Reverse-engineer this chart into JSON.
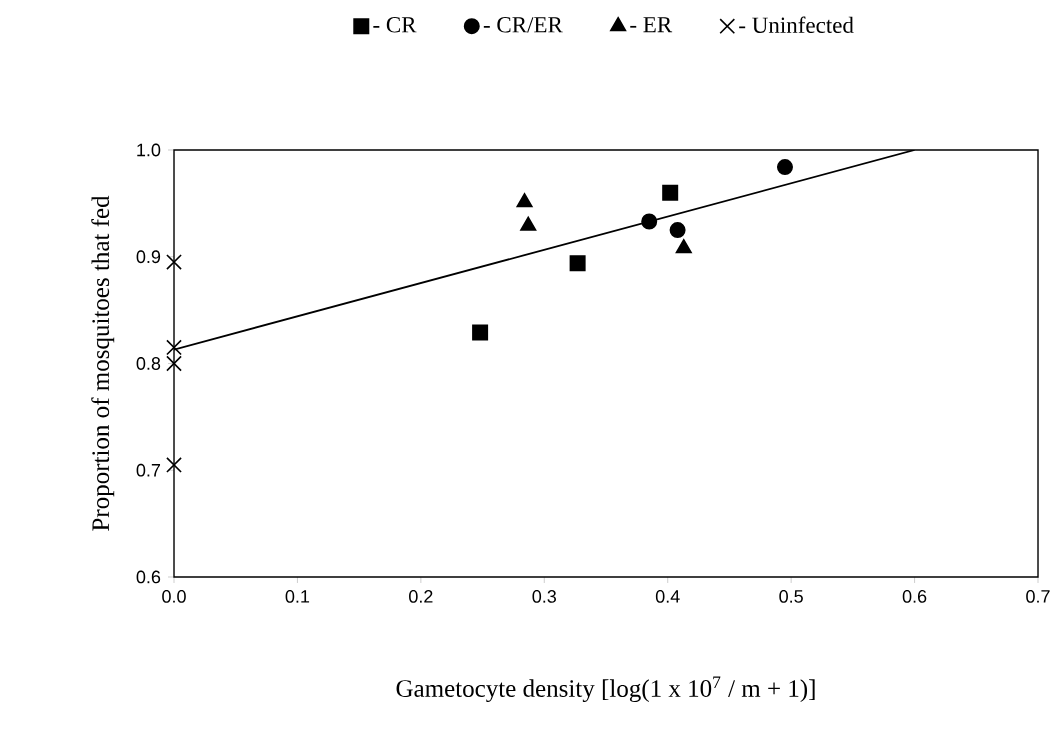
{
  "chart_data": {
    "type": "scatter",
    "xlabel": "Gametocyte density  [log(1 x 10$^{7}$ / m + 1)]",
    "ylabel": "Proportion of mosquitoes that fed",
    "xlim": [
      0,
      0.7
    ],
    "ylim": [
      0.6,
      1.0
    ],
    "xticks": [
      {
        "value": 0,
        "label": "0.0"
      },
      0.1,
      0.2,
      0.3,
      0.4,
      0.5,
      0.6,
      0.7
    ],
    "yticks": [
      0.6,
      0.7,
      0.8,
      0.9,
      {
        "value": 1,
        "label": "1.0"
      }
    ],
    "grid": false,
    "legend": "top",
    "series": [
      {
        "name": "- CR",
        "color": "#000000",
        "marker": "square",
        "x": [
          0.248,
          0.327,
          0.402
        ],
        "values": [
          0.829,
          0.894,
          0.96
        ]
      },
      {
        "name": "- CR/ER",
        "color": "#000000",
        "marker": "circle",
        "x": [
          0.385,
          0.408,
          0.495
        ],
        "values": [
          0.933,
          0.925,
          0.984
        ]
      },
      {
        "name": "-  ER",
        "color": "#000000",
        "marker": "triangle",
        "x": [
          0.284,
          0.287,
          0.413
        ],
        "values": [
          0.951,
          0.929,
          0.908
        ]
      },
      {
        "name": "- Uninfected",
        "color": "#000000",
        "marker": "cross",
        "x": [
          0,
          0,
          0,
          0
        ],
        "values": [
          0.895,
          0.815,
          0.8,
          0.705
        ]
      },
      {
        "type": "line",
        "color": "#000000",
        "marker": "none",
        "line_style": "solid",
        "x": [
          0,
          0.6
        ],
        "values": [
          0.813,
          1.0
        ]
      }
    ]
  }
}
